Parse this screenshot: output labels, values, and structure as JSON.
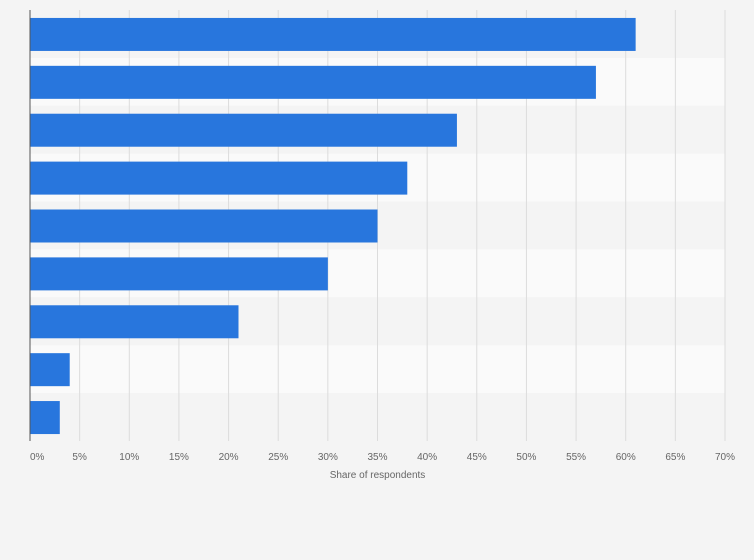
{
  "chart_data": {
    "type": "bar",
    "orientation": "horizontal",
    "categories": [
      "",
      "",
      "",
      "",
      "",
      "",
      "",
      "",
      ""
    ],
    "values": [
      61,
      57,
      43,
      38,
      35,
      30,
      21,
      4,
      3
    ],
    "xlabel": "Share of respondents",
    "ylabel": "",
    "xlim": [
      0,
      70
    ],
    "ticks": [
      "0%",
      "5%",
      "10%",
      "15%",
      "20%",
      "25%",
      "30%",
      "35%",
      "40%",
      "45%",
      "50%",
      "55%",
      "60%",
      "65%",
      "70%"
    ],
    "grid": true,
    "bar_color": "#2876dd",
    "band_colors": [
      "#f4f4f4",
      "#fafafa"
    ]
  }
}
